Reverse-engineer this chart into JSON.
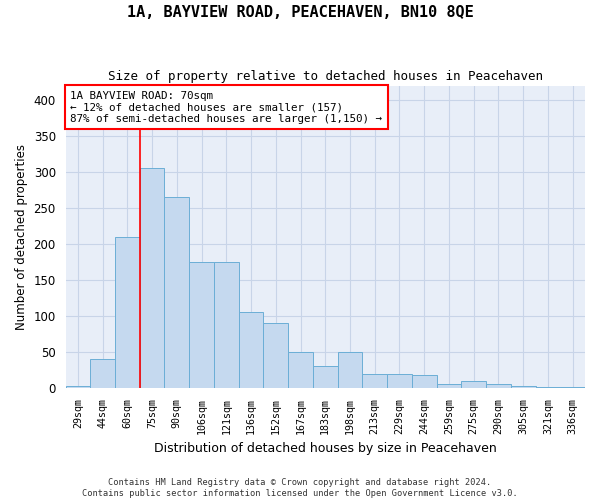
{
  "title": "1A, BAYVIEW ROAD, PEACEHAVEN, BN10 8QE",
  "subtitle": "Size of property relative to detached houses in Peacehaven",
  "xlabel": "Distribution of detached houses by size in Peacehaven",
  "ylabel": "Number of detached properties",
  "footer_line1": "Contains HM Land Registry data © Crown copyright and database right 2024.",
  "footer_line2": "Contains public sector information licensed under the Open Government Licence v3.0.",
  "categories": [
    "29sqm",
    "44sqm",
    "60sqm",
    "75sqm",
    "90sqm",
    "106sqm",
    "121sqm",
    "136sqm",
    "152sqm",
    "167sqm",
    "183sqm",
    "198sqm",
    "213sqm",
    "229sqm",
    "244sqm",
    "259sqm",
    "275sqm",
    "290sqm",
    "305sqm",
    "321sqm",
    "336sqm"
  ],
  "values": [
    3,
    40,
    210,
    305,
    265,
    175,
    175,
    105,
    90,
    50,
    30,
    50,
    20,
    20,
    18,
    6,
    10,
    6,
    3,
    2,
    2
  ],
  "bar_color": "#c5d9ef",
  "bar_edge_color": "#6baed6",
  "grid_color": "#c8d4e8",
  "background_color": "#e8eef8",
  "annotation_line1": "1A BAYVIEW ROAD: 70sqm",
  "annotation_line2": "← 12% of detached houses are smaller (157)",
  "annotation_line3": "87% of semi-detached houses are larger (1,150) →",
  "red_line_x": 2.5,
  "ylim": [
    0,
    420
  ],
  "yticks": [
    0,
    50,
    100,
    150,
    200,
    250,
    300,
    350,
    400
  ]
}
